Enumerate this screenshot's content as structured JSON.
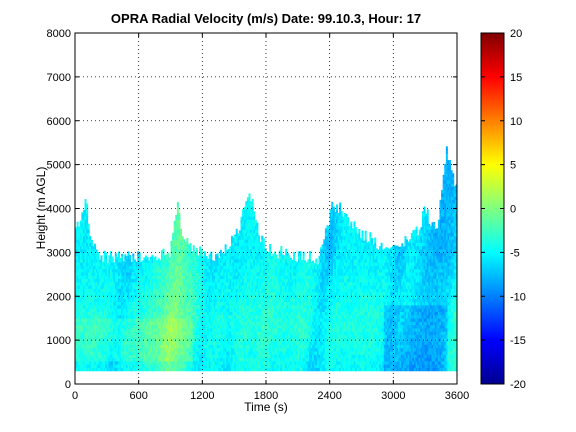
{
  "chart_data": {
    "type": "heatmap",
    "title": "OPRA Radial Velocity (m/s)  Date: 99.10.3, Hour: 17",
    "xlabel": "Time (s)",
    "ylabel": "Height (m AGL)",
    "xlim": [
      0,
      3600
    ],
    "ylim": [
      0,
      8000
    ],
    "x_ticks": [
      "0",
      "600",
      "1200",
      "1800",
      "2400",
      "3000",
      "3600"
    ],
    "y_ticks": [
      "0",
      "1000",
      "2000",
      "3000",
      "4000",
      "5000",
      "6000",
      "7000",
      "8000"
    ],
    "grid": true,
    "colormap": "jet",
    "colorbar": {
      "range": [
        -20,
        20
      ],
      "ticks": [
        "20",
        "15",
        "10",
        "5",
        "0",
        "-5",
        "-10",
        "-15",
        "-20"
      ]
    },
    "data_floor_height": 300,
    "echo_top_profile": {
      "time": [
        0,
        100,
        120,
        140,
        250,
        300,
        500,
        700,
        900,
        960,
        980,
        1000,
        1100,
        1300,
        1500,
        1580,
        1600,
        1640,
        1700,
        1750,
        1800,
        1900,
        2000,
        2100,
        2200,
        2300,
        2400,
        2420,
        2500,
        2600,
        2700,
        2800,
        2900,
        3000,
        3100,
        3200,
        3250,
        3300,
        3350,
        3400,
        3450,
        3500,
        3550,
        3600
      ],
      "height": [
        3500,
        4100,
        3900,
        3300,
        2900,
        2900,
        2900,
        2900,
        3000,
        4000,
        4100,
        3300,
        3100,
        2900,
        3300,
        3800,
        4200,
        4300,
        3900,
        3300,
        3100,
        3000,
        3000,
        2900,
        2900,
        2800,
        3800,
        4100,
        4000,
        3700,
        3400,
        3300,
        3100,
        3100,
        3200,
        3400,
        3600,
        4000,
        3700,
        3500,
        4200,
        5300,
        4800,
        4500
      ]
    },
    "mean_velocity_by_height": {
      "height": [
        300,
        1000,
        1500,
        2000,
        2500,
        3000,
        4000,
        5000
      ],
      "velocity": [
        -5,
        -4,
        -4,
        -4.5,
        -5,
        -5.5,
        -5,
        -5
      ]
    },
    "value_range_observed": [
      -10,
      3
    ]
  }
}
